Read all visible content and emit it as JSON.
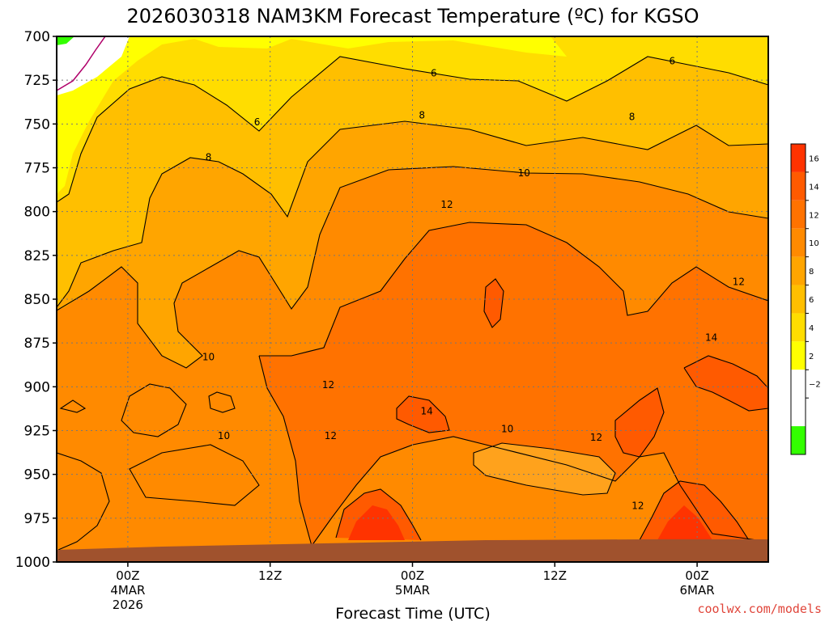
{
  "chart_data": {
    "type": "heatmap",
    "title": "2026030318 NAM3KM Forecast Temperature (ºC) for KGSO",
    "xlabel": "Forecast Time (UTC)",
    "ylabel": "",
    "y_axis": {
      "scale": "pressure (inverted)",
      "ticks": [
        "700",
        "725",
        "750",
        "775",
        "800",
        "825",
        "850",
        "875",
        "900",
        "925",
        "950",
        "975",
        "1000"
      ],
      "range": [
        1000,
        700
      ]
    },
    "x_axis": {
      "range_hours": [
        -6,
        54
      ],
      "ticks": [
        {
          "hour": 0,
          "lines": [
            "00Z",
            "4MAR",
            "2026"
          ]
        },
        {
          "hour": 12,
          "lines": [
            "12Z"
          ]
        },
        {
          "hour": 24,
          "lines": [
            "00Z",
            "5MAR"
          ]
        },
        {
          "hour": 36,
          "lines": [
            "12Z"
          ]
        },
        {
          "hour": 48,
          "lines": [
            "00Z",
            "6MAR"
          ]
        }
      ]
    },
    "grid": true,
    "colorbar": {
      "placement": "right",
      "tick_labels": [
        "16",
        "14",
        "12",
        "10",
        "8",
        "6",
        "4",
        "2",
        "−2"
      ],
      "bins": [
        {
          "range": "16-18",
          "color": "#ff3300"
        },
        {
          "range": "14-16",
          "color": "#ff5a00"
        },
        {
          "range": "12-14",
          "color": "#ff7200"
        },
        {
          "range": "10-12",
          "color": "#ff8a00"
        },
        {
          "range": "8-10",
          "color": "#ffa500"
        },
        {
          "range": "6-8",
          "color": "#ffbf00"
        },
        {
          "range": "4-6",
          "color": "#ffdd00"
        },
        {
          "range": "2-4",
          "color": "#ffff00"
        },
        {
          "range": "0-2",
          "color": "#ffffff"
        },
        {
          "range": "-2-0",
          "color": "#ffffff"
        },
        {
          "range": "<-2",
          "color": "#33ff00"
        }
      ]
    },
    "contour_labels": [
      {
        "value": "6",
        "hour": 25.8,
        "p": 721
      },
      {
        "value": "6",
        "hour": 45.9,
        "p": 714
      },
      {
        "value": "6",
        "hour": 10.9,
        "p": 749
      },
      {
        "value": "8",
        "hour": 24.8,
        "p": 745
      },
      {
        "value": "8",
        "hour": 42.5,
        "p": 746
      },
      {
        "value": "8",
        "hour": 6.8,
        "p": 769
      },
      {
        "value": "10",
        "hour": 33.4,
        "p": 778
      },
      {
        "value": "12",
        "hour": 26.9,
        "p": 796
      },
      {
        "value": "12",
        "hour": 51.5,
        "p": 840
      },
      {
        "value": "14",
        "hour": 49.2,
        "p": 872
      },
      {
        "value": "10",
        "hour": 6.8,
        "p": 883
      },
      {
        "value": "12",
        "hour": 16.9,
        "p": 899
      },
      {
        "value": "14",
        "hour": 25.2,
        "p": 914
      },
      {
        "value": "10",
        "hour": 8.1,
        "p": 928
      },
      {
        "value": "12",
        "hour": 17.1,
        "p": 928
      },
      {
        "value": "10",
        "hour": 32.0,
        "p": 924
      },
      {
        "value": "12",
        "hour": 39.5,
        "p": 929
      },
      {
        "value": "12",
        "hour": 43.0,
        "p": 968
      }
    ],
    "ground_color": "#a0522d"
  },
  "credit": "coolwx.com/models"
}
